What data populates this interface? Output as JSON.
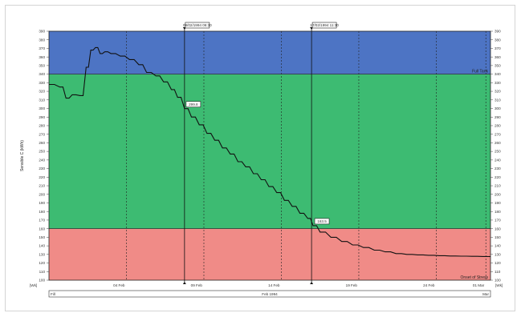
{
  "chart_data": {
    "type": "line",
    "title": "",
    "ylabel": "Sensible C (kWh)",
    "xlabel": "Feb 1994",
    "ylim": [
      100,
      390
    ],
    "y_ticks": [
      100,
      110,
      120,
      130,
      140,
      150,
      160,
      170,
      180,
      190,
      200,
      210,
      220,
      230,
      240,
      250,
      260,
      270,
      280,
      290,
      300,
      310,
      320,
      330,
      340,
      350,
      360,
      370,
      380,
      390
    ],
    "grid": false,
    "x_tick_labels": [
      "04 Feb",
      "09 Feb",
      "14 Feb",
      "19 Feb",
      "24 Feb",
      "01 Mar"
    ],
    "x_range_label_left": "[Wk]",
    "x_range_label_right": "[Wk]",
    "bottom_left_label": "Fill",
    "bottom_right_label": "Mar",
    "zones": [
      {
        "name": "Full Tank",
        "from": 340,
        "to": 390,
        "color": "#4d74c4"
      },
      {
        "name": "",
        "from": 160,
        "to": 340,
        "color": "#3dbb72"
      },
      {
        "name": "Onset of Stress",
        "from": 100,
        "to": 160,
        "color": "#f08b87"
      }
    ],
    "cursors": [
      {
        "label": "09/02/1994 06:30",
        "x": 8.75
      },
      {
        "label": "17/02/1994 11:30",
        "x": 16.95
      }
    ],
    "callouts": [
      {
        "label": "299.8",
        "x": 8.75,
        "y": 299.8
      },
      {
        "label": "163.5",
        "x": 17.05,
        "y": 163.5
      }
    ],
    "series": [
      {
        "color": "#111111",
        "x": [
          0,
          0.7,
          1.1,
          1.5,
          2.0,
          2.4,
          2.7,
          3.0,
          3.3,
          3.6,
          4.0,
          4.6,
          5.2,
          5.8,
          6.3,
          6.9,
          7.4,
          7.9,
          8.3,
          8.75,
          9.2,
          9.7,
          10.2,
          10.7,
          11.2,
          11.7,
          12.2,
          12.7,
          13.2,
          13.7,
          14.2,
          14.7,
          15.2,
          15.7,
          16.2,
          16.7,
          17.05,
          17.5,
          18.2,
          18.9,
          19.6,
          20.3,
          21.0,
          21.7,
          22.4,
          23.1,
          23.8,
          24.5,
          25.2,
          25.9,
          26.6,
          27.3,
          28.0,
          28.5
        ],
        "y": [
          328,
          325,
          312,
          316,
          315,
          348,
          368,
          371,
          364,
          366,
          364,
          361,
          357,
          351,
          342,
          338,
          331,
          322,
          313,
          299.8,
          290,
          281,
          271,
          263,
          254,
          247,
          238,
          232,
          224,
          217,
          209,
          202,
          193,
          186,
          178,
          172,
          163.5,
          156,
          150,
          145,
          141,
          138,
          135,
          133,
          131,
          130,
          129.5,
          129,
          128.5,
          128.2,
          128,
          127.8,
          127.6,
          127.5
        ]
      }
    ]
  }
}
